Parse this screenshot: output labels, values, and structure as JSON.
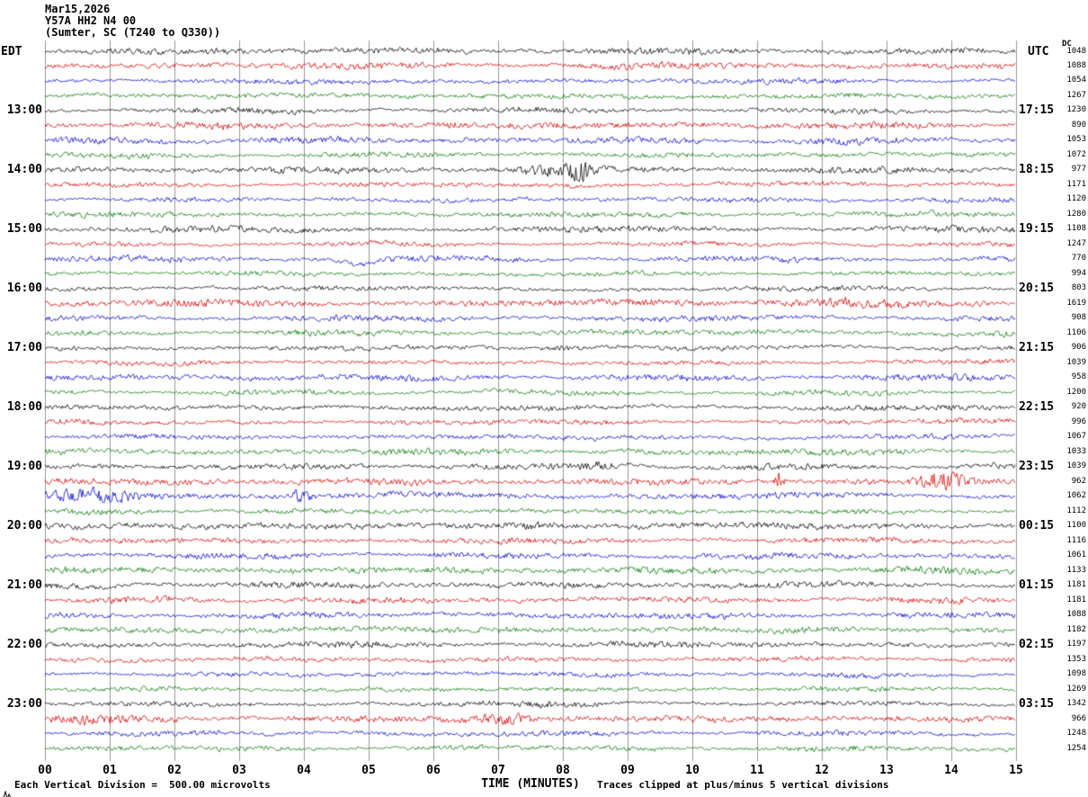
{
  "title": {
    "date": "Mar15,2026",
    "station": "Y57A HH2 N4 00",
    "location": "(Sumter, SC (T240 to Q330))"
  },
  "axes": {
    "left_label": "EDT",
    "right_label": "UTC",
    "dc_header": "DC",
    "x_label": "TIME (MINUTES)",
    "x_ticks": [
      "00",
      "01",
      "02",
      "03",
      "04",
      "05",
      "06",
      "07",
      "08",
      "09",
      "10",
      "11",
      "12",
      "13",
      "14",
      "15"
    ]
  },
  "footer": {
    "left": "Each Vertical Division =  500.00 microvolts",
    "right": "Traces clipped at plus/minus 5 vertical divisions"
  },
  "chart_data": {
    "type": "line",
    "subtype": "seismogram-helicorder",
    "title": "Y57A HH2 N4 00 (Sumter, SC (T240 to Q330)) Mar15,2026",
    "rows": 48,
    "minutes_per_row": 15,
    "x_range_minutes": [
      0,
      15
    ],
    "first_row_start_edt": "12:00",
    "last_row_end_edt": "24:00",
    "utc_offset_hours": 4,
    "amplitude_units": "microvolts",
    "microvolts_per_division": 500.0,
    "clip_divisions": 5,
    "grid": "vertical gridline at every minute, no horizontal gridlines",
    "legend_position": "none",
    "trace_color_cycle": [
      "#000000",
      "#d40000",
      "#0000cc",
      "#007700"
    ],
    "left_time_labels": [
      {
        "row": 4,
        "label": "13:00"
      },
      {
        "row": 8,
        "label": "14:00"
      },
      {
        "row": 12,
        "label": "15:00"
      },
      {
        "row": 16,
        "label": "16:00"
      },
      {
        "row": 20,
        "label": "17:00"
      },
      {
        "row": 24,
        "label": "18:00"
      },
      {
        "row": 28,
        "label": "19:00"
      },
      {
        "row": 32,
        "label": "20:00"
      },
      {
        "row": 36,
        "label": "21:00"
      },
      {
        "row": 40,
        "label": "22:00"
      },
      {
        "row": 44,
        "label": "23:00"
      }
    ],
    "right_time_labels": [
      {
        "row": 4,
        "label": "17:15"
      },
      {
        "row": 8,
        "label": "18:15"
      },
      {
        "row": 12,
        "label": "19:15"
      },
      {
        "row": 16,
        "label": "20:15"
      },
      {
        "row": 20,
        "label": "21:15"
      },
      {
        "row": 24,
        "label": "22:15"
      },
      {
        "row": 28,
        "label": "23:15"
      },
      {
        "row": 32,
        "label": "00:15"
      },
      {
        "row": 36,
        "label": "01:15"
      },
      {
        "row": 40,
        "label": "02:15"
      },
      {
        "row": 44,
        "label": "03:15"
      }
    ],
    "dc_values": [
      1048,
      1088,
      1054,
      1267,
      1230,
      890,
      1053,
      1072,
      977,
      1171,
      1120,
      1280,
      1108,
      1247,
      770,
      994,
      803,
      1619,
      908,
      1106,
      906,
      1039,
      958,
      1200,
      920,
      996,
      1067,
      1033,
      1039,
      962,
      1062,
      1112,
      1100,
      1116,
      1061,
      1133,
      1181,
      1181,
      1088,
      1182,
      1197,
      1353,
      1098,
      1269,
      1342,
      966,
      1248,
      1254
    ],
    "events": [
      {
        "row": 8,
        "minute": 8.25,
        "width": 0.3,
        "gain": 3.2,
        "shape": "burst"
      },
      {
        "row": 8,
        "minute": 7.7,
        "width": 0.8,
        "gain": 1.8,
        "shape": "burst"
      },
      {
        "row": 14,
        "minute": 4.85,
        "width": 0.45,
        "gain": 2.6,
        "shape": "dip"
      },
      {
        "row": 17,
        "minute": 11.5,
        "width": 3.5,
        "gain": 1.5,
        "shape": "burst"
      },
      {
        "row": 17,
        "minute": 1.5,
        "width": 2.0,
        "gain": 1.3,
        "shape": "burst"
      },
      {
        "row": 20,
        "minute": 8.0,
        "width": 0.6,
        "gain": 2.0,
        "shape": "burst"
      },
      {
        "row": 28,
        "minute": 8.6,
        "width": 0.5,
        "gain": 2.0,
        "shape": "burst"
      },
      {
        "row": 29,
        "minute": 11.35,
        "width": 0.1,
        "gain": 9.0,
        "shape": "spike"
      },
      {
        "row": 29,
        "minute": 13.9,
        "width": 0.6,
        "gain": 2.6,
        "shape": "burst"
      },
      {
        "row": 30,
        "minute": 0.8,
        "width": 1.2,
        "gain": 3.0,
        "shape": "burst"
      },
      {
        "row": 30,
        "minute": 3.95,
        "width": 0.25,
        "gain": 3.2,
        "shape": "burst"
      },
      {
        "row": 32,
        "minute": 7.6,
        "width": 0.5,
        "gain": 1.8,
        "shape": "burst"
      },
      {
        "row": 44,
        "minute": 8.0,
        "width": 1.0,
        "gain": 1.7,
        "shape": "burst"
      },
      {
        "row": 45,
        "minute": 7.1,
        "width": 0.7,
        "gain": 2.8,
        "shape": "burst"
      },
      {
        "row": 45,
        "minute": 0.7,
        "width": 1.0,
        "gain": 1.6,
        "shape": "burst"
      }
    ]
  }
}
